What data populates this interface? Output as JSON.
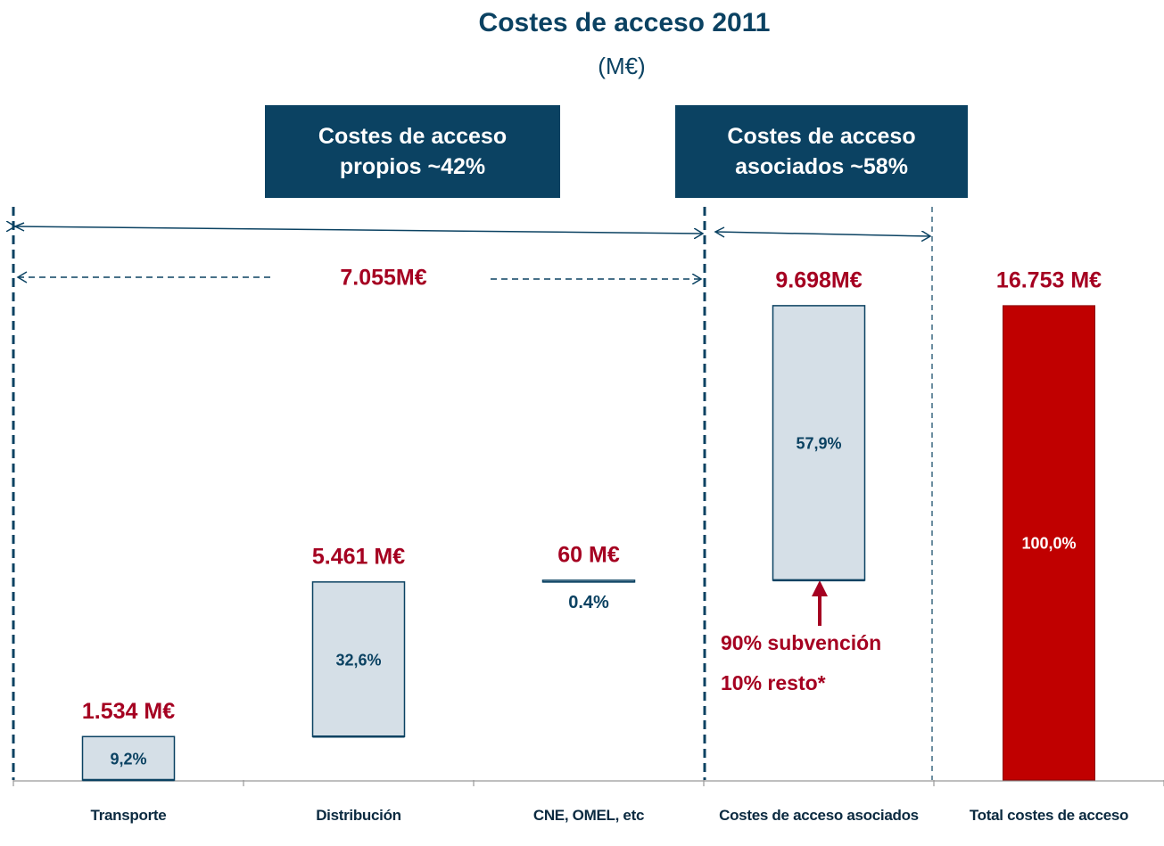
{
  "chart_data": {
    "type": "waterfall",
    "title": "Costes de acceso 2011",
    "subtitle": "(M€)",
    "categories": [
      "Transporte",
      "Distribución",
      "CNE, OMEL, etc",
      "Costes de acceso asociados",
      "Total costes de acceso"
    ],
    "values": [
      1534,
      5461,
      60,
      9698,
      16753
    ],
    "value_labels": [
      "1.534 M€",
      "5.461 M€",
      "60 M€",
      "9.698M€",
      "16.753 M€"
    ],
    "percent_labels": [
      "9,2%",
      "32,6%",
      "0.4%",
      "57,9%",
      "100,0%"
    ],
    "measure": [
      "relative",
      "relative",
      "relative",
      "relative",
      "total"
    ],
    "colors": [
      "#d5dfe7",
      "#d5dfe7",
      "#d5dfe7",
      "#d5dfe7",
      "#c00000"
    ],
    "ylim": [
      0,
      24400
    ],
    "group_boxes": [
      "Costes de acceso propios ~42%",
      "Costes de acceso asociados ~58%"
    ],
    "annotations": [
      "7.055M€",
      "90% subvención",
      "10% resto*"
    ]
  }
}
